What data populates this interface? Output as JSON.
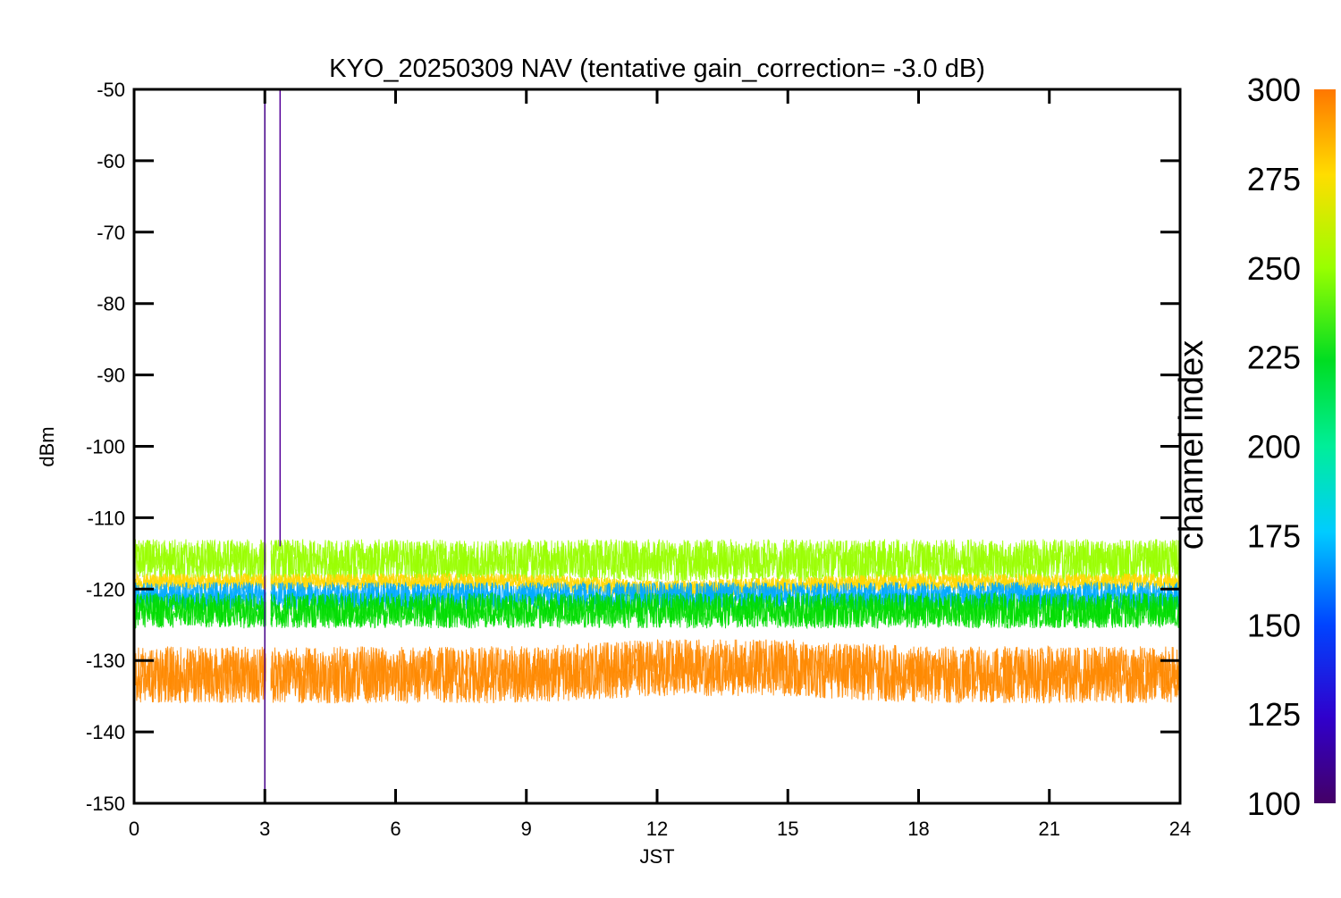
{
  "chart_data": {
    "type": "line",
    "title": "KYO_20250309 NAV (tentative gain_correction= -3.0 dB)",
    "xlabel": "JST",
    "ylabel": "dBm",
    "xlim": [
      0,
      24
    ],
    "ylim": [
      -150,
      -50
    ],
    "xticks": [
      "0",
      "3",
      "6",
      "9",
      "12",
      "15",
      "18",
      "21",
      "24"
    ],
    "yticks": [
      "-50",
      "-60",
      "-70",
      "-80",
      "-90",
      "-100",
      "-110",
      "-120",
      "-130",
      "-140",
      "-150"
    ],
    "grid": false,
    "colorbar": {
      "label": "channel index",
      "range": [
        100,
        300
      ],
      "ticks": [
        "300",
        "275",
        "250",
        "225",
        "200",
        "175",
        "150",
        "125",
        "100"
      ],
      "colormap": "rainbow"
    },
    "series": [
      {
        "channel_index": 260,
        "color": "#99ff00",
        "x": [
          0,
          3,
          6,
          9,
          12,
          15,
          18,
          21,
          24
        ],
        "values": [
          -116,
          -116,
          -116,
          -116,
          -116,
          -116,
          -116,
          -116,
          -116
        ],
        "spread_db": 3
      },
      {
        "channel_index": 285,
        "color": "#ffd700",
        "x": [
          0,
          3,
          6,
          9,
          12,
          15,
          18,
          21,
          24
        ],
        "values": [
          -119,
          -119,
          -119,
          -119,
          -120,
          -119.5,
          -119,
          -119,
          -119
        ],
        "spread_db": 1.2
      },
      {
        "channel_index": 160,
        "color": "#00aaff",
        "x": [
          0,
          3,
          6,
          9,
          12,
          15,
          18,
          21,
          24
        ],
        "values": [
          -121,
          -121,
          -121,
          -121,
          -121,
          -121,
          -121,
          -121,
          -121
        ],
        "spread_db": 2
      },
      {
        "channel_index": 225,
        "color": "#00dd00",
        "x": [
          0,
          3,
          6,
          9,
          12,
          15,
          18,
          21,
          24
        ],
        "values": [
          -123,
          -123,
          -123,
          -123,
          -123,
          -123,
          -123,
          -123,
          -123
        ],
        "spread_db": 2.5
      },
      {
        "channel_index": 300,
        "color": "#ff8800",
        "x": [
          0,
          3,
          6,
          9,
          12,
          15,
          18,
          21,
          24
        ],
        "values": [
          -132,
          -132,
          -132,
          -132,
          -131,
          -131,
          -132,
          -132,
          -132
        ],
        "spread_db": 4
      }
    ],
    "spikes": [
      {
        "x": 3.0,
        "y_top": -51,
        "y_bottom": -148,
        "color": "#440088"
      },
      {
        "x": 3.35,
        "y_top": -50,
        "y_bottom": -114,
        "color": "#550099"
      }
    ],
    "data_gap": {
      "x": 3.08
    }
  }
}
